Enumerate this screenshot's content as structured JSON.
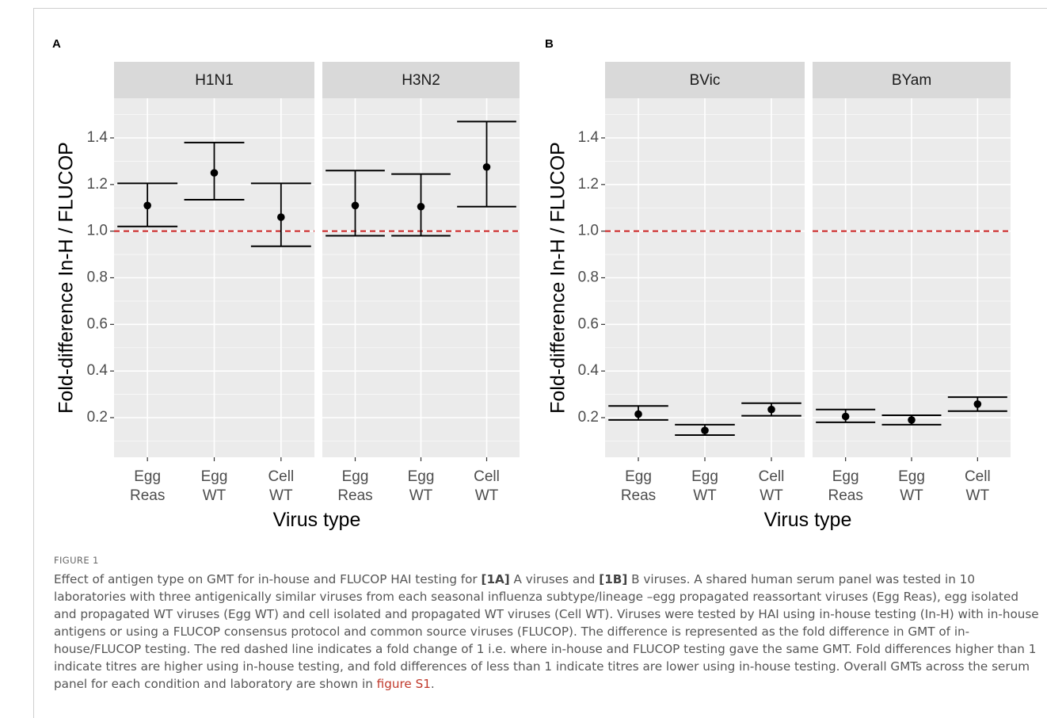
{
  "figure_label": "FIGURE 1",
  "caption": {
    "t1": "Effect of antigen type on GMT for in-house and FLUCOP HAI testing for ",
    "b1": "[1A]",
    "t2": " A viruses and ",
    "b2": "[1B]",
    "t3": " B viruses. A shared human serum panel was tested in 10 laboratories with three antigenically similar viruses from each seasonal influenza subtype/lineage –egg propagated reassortant viruses (Egg Reas), egg isolated and propagated WT viruses (Egg WT) and cell isolated and propagated WT viruses (Cell WT). Viruses were tested by HAI using in-house testing (In-H) with in-house antigens or using a FLUCOP consensus protocol and common source viruses (FLUCOP). The difference is represented as the fold difference in GMT of in-house/FLUCOP testing. The red dashed line indicates a fold change of 1 i.e. where in-house and FLUCOP testing gave the same GMT. Fold differences higher than 1 indicate titres are higher using in-house testing, and fold differences of less than 1 indicate titres are lower using in-house testing. Overall GMTs across the serum panel for each condition and laboratory are shown in ",
    "link": "figure S1",
    "t4": "."
  },
  "colors": {
    "panel_bg": "#ebebeb",
    "strip_bg": "#d9d9d9",
    "grid": "#ffffff",
    "reference_line": "#cc2222",
    "marks": "#000000",
    "link": "#c0392b"
  },
  "chart_data": [
    {
      "panel_label": "A",
      "type": "scatter",
      "error_bars": true,
      "xlabel": "Virus type",
      "ylabel": "Fold-difference In-H / FLUCOP",
      "ylim": [
        0.03,
        1.57
      ],
      "yticks": [
        "0.2",
        "0.4",
        "0.6",
        "0.8",
        "1.0",
        "1.2",
        "1.4"
      ],
      "ytick_values": [
        0.2,
        0.4,
        0.6,
        0.8,
        1.0,
        1.2,
        1.4
      ],
      "reference_line": 1.0,
      "grid": true,
      "categories": [
        {
          "line1": "Egg",
          "line2": "Reas"
        },
        {
          "line1": "Egg",
          "line2": "WT"
        },
        {
          "line1": "Cell",
          "line2": "WT"
        }
      ],
      "facets": [
        {
          "name": "H1N1",
          "points": [
            {
              "y": 1.11,
              "lo": 1.02,
              "hi": 1.205
            },
            {
              "y": 1.25,
              "lo": 1.135,
              "hi": 1.38
            },
            {
              "y": 1.06,
              "lo": 0.935,
              "hi": 1.205
            }
          ]
        },
        {
          "name": "H3N2",
          "points": [
            {
              "y": 1.11,
              "lo": 0.98,
              "hi": 1.26
            },
            {
              "y": 1.105,
              "lo": 0.98,
              "hi": 1.245
            },
            {
              "y": 1.275,
              "lo": 1.105,
              "hi": 1.47
            }
          ]
        }
      ]
    },
    {
      "panel_label": "B",
      "type": "scatter",
      "error_bars": true,
      "xlabel": "Virus type",
      "ylabel": "Fold-difference In-H / FLUCOP",
      "ylim": [
        0.03,
        1.57
      ],
      "yticks": [
        "0.2",
        "0.4",
        "0.6",
        "0.8",
        "1.0",
        "1.2",
        "1.4"
      ],
      "ytick_values": [
        0.2,
        0.4,
        0.6,
        0.8,
        1.0,
        1.2,
        1.4
      ],
      "reference_line": 1.0,
      "grid": true,
      "categories": [
        {
          "line1": "Egg",
          "line2": "Reas"
        },
        {
          "line1": "Egg",
          "line2": "WT"
        },
        {
          "line1": "Cell",
          "line2": "WT"
        }
      ],
      "facets": [
        {
          "name": "BVic",
          "points": [
            {
              "y": 0.215,
              "lo": 0.19,
              "hi": 0.25
            },
            {
              "y": 0.145,
              "lo": 0.125,
              "hi": 0.17
            },
            {
              "y": 0.235,
              "lo": 0.208,
              "hi": 0.262
            }
          ]
        },
        {
          "name": "BYam",
          "points": [
            {
              "y": 0.205,
              "lo": 0.18,
              "hi": 0.235
            },
            {
              "y": 0.19,
              "lo": 0.17,
              "hi": 0.21
            },
            {
              "y": 0.258,
              "lo": 0.228,
              "hi": 0.288
            }
          ]
        }
      ]
    }
  ]
}
